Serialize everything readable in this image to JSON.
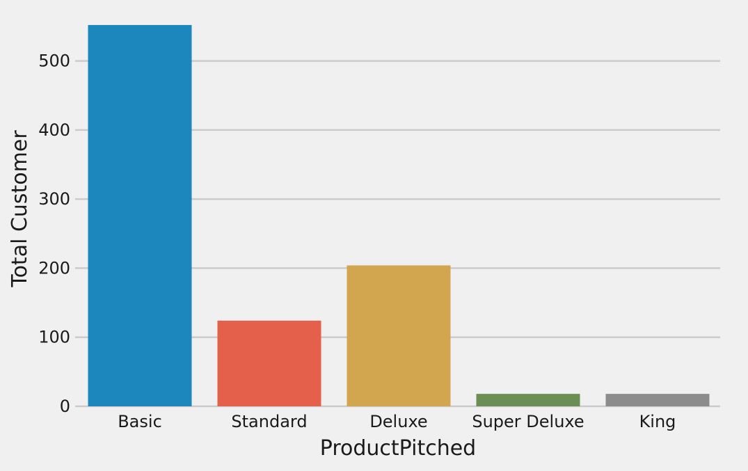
{
  "chart_data": {
    "type": "bar",
    "categories": [
      "Basic",
      "Standard",
      "Deluxe",
      "Super Deluxe",
      "King"
    ],
    "values": [
      552,
      124,
      204,
      18,
      18
    ],
    "colors": [
      "#1c87bd",
      "#e5604a",
      "#d2a64e",
      "#6b8e55",
      "#8c8c8c"
    ],
    "title": "",
    "xlabel": "ProductPitched",
    "ylabel": "Total Customer",
    "ylim": [
      0,
      560
    ],
    "yticks": [
      0,
      100,
      200,
      300,
      400,
      500
    ],
    "grid": "horizontal",
    "background": "#f0f0f0"
  }
}
